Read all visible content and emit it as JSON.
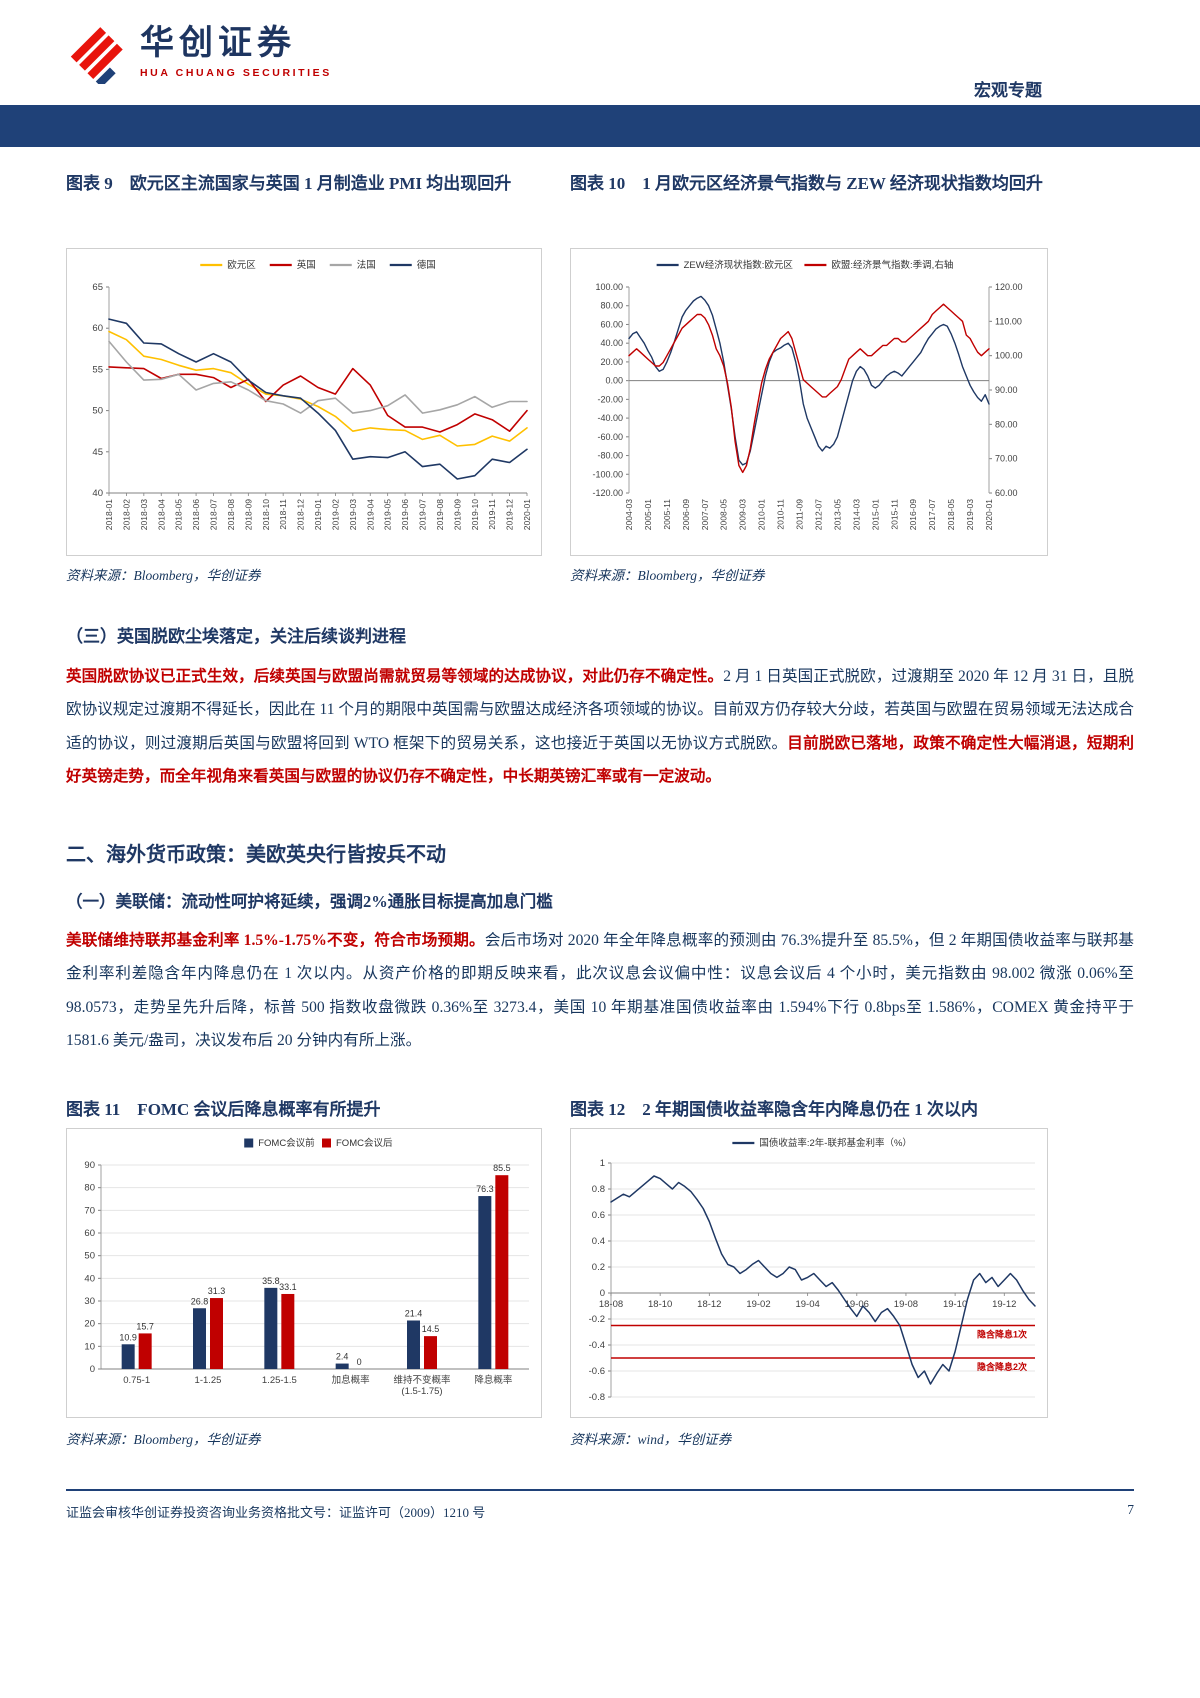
{
  "header": {
    "brand": "华创证券",
    "brand_sub": "HUA CHUANG SECURITIES",
    "tag": "宏观专题"
  },
  "figures": {
    "fig9": {
      "caption": "图表 9　欧元区主流国家与英国 1 月制造业 PMI 均出现回升",
      "source": "资料来源：Bloomberg，华创证券"
    },
    "fig10": {
      "caption": "图表 10　1 月欧元区经济景气指数与 ZEW 经济现状指数均回升",
      "source": "资料来源：Bloomberg，华创证券"
    },
    "fig11": {
      "caption": "图表 11　FOMC 会议后降息概率有所提升",
      "source": "资料来源：Bloomberg，华创证券"
    },
    "fig12": {
      "caption": "图表 12　2 年期国债收益率隐含年内降息仍在 1 次以内",
      "source": "资料来源：wind，华创证券"
    }
  },
  "sections": {
    "s3_heading": "（三）英国脱欧尘埃落定，关注后续谈判进程",
    "brexit_paragraph": [
      {
        "style": "em",
        "text": "英国脱欧协议已正式生效，后续英国与欧盟尚需就贸易等领域的达成协议，对此仍存不确定性。"
      },
      {
        "style": "normal",
        "text": "2 月 1 日英国正式脱欧，过渡期至 2020 年 12 月 31 日，且脱欧协议规定过渡期不得延长，因此在 11 个月的期限中英国需与欧盟达成经济各项领域的协议。目前双方仍存较大分歧，若英国与欧盟在贸易领域无法达成合适的协议，则过渡期后英国与欧盟将回到 WTO 框架下的贸易关系，这也接近于英国以无协议方式脱欧。"
      },
      {
        "style": "em",
        "text": "目前脱欧已落地，政策不确定性大幅消退，短期利好英镑走势，而全年视角来看英国与欧盟的协议仍存不确定性，中长期英镑汇率或有一定波动。"
      }
    ],
    "s2_heading": "二、海外货币政策：美欧英央行皆按兵不动",
    "s21_heading": "（一）美联储：流动性呵护将延续，强调2%通胀目标提高加息门槛",
    "fed_paragraph": [
      {
        "style": "em",
        "text": "美联储维持联邦基金利率 1.5%-1.75%不变，符合市场预期。"
      },
      {
        "style": "normal",
        "text": "会后市场对 2020 年全年降息概率的预测由 76.3%提升至 85.5%，但 2 年期国债收益率与联邦基金利率利差隐含年内降息仍在 1 次以内。从资产价格的即期反映来看，此次议息会议偏中性：议息会议后 4 个小时，美元指数由 98.002 微涨 0.06%至 98.0573，走势呈先升后降，标普 500 指数收盘微跌 0.36%至 3273.4，美国 10 年期基准国债收益率由 1.594%下行 0.8bps至 1.586%，COMEX 黄金持平于 1581.6 美元/盎司，决议发布后 20 分钟内有所上涨。"
      }
    ]
  },
  "footer": {
    "license": "证监会审核华创证券投资咨询业务资格批文号：证监许可（2009）1210 号",
    "page": "7"
  },
  "colors": {
    "navy": "#1F3864",
    "red": "#C00000",
    "bar": "#1F4178",
    "yellow": "#FFC000",
    "gray": "#A6A6A6"
  },
  "chart_data": [
    {
      "id": "fig9",
      "type": "line",
      "title": "欧元区主流国家与英国1月制造业PMI均出现回升",
      "ylim": [
        40,
        65
      ],
      "yticks": [
        40,
        45,
        50,
        55,
        60,
        65
      ],
      "ytick_labels": [
        "40",
        "45",
        "50",
        "55",
        "60",
        "65"
      ],
      "x_labels": [
        "2018-01",
        "2018-02",
        "2018-03",
        "2018-04",
        "2018-05",
        "2018-06",
        "2018-07",
        "2018-08",
        "2018-09",
        "2018-10",
        "2018-11",
        "2018-12",
        "2019-01",
        "2019-02",
        "2019-03",
        "2019-04",
        "2019-05",
        "2019-06",
        "2019-07",
        "2019-08",
        "2019-09",
        "2019-10",
        "2019-11",
        "2019-12",
        "2020-01"
      ],
      "series": [
        {
          "name": "欧元区",
          "color": "#FFC000",
          "values": [
            59.6,
            58.6,
            56.6,
            56.2,
            55.5,
            54.9,
            55.1,
            54.6,
            53.2,
            52.0,
            51.8,
            51.4,
            50.5,
            49.3,
            47.5,
            47.9,
            47.7,
            47.6,
            46.5,
            47.0,
            45.7,
            45.9,
            46.9,
            46.3,
            47.9
          ]
        },
        {
          "name": "英国",
          "color": "#C00000",
          "values": [
            55.3,
            55.2,
            55.1,
            53.9,
            54.4,
            54.4,
            54.0,
            52.8,
            53.8,
            51.1,
            53.1,
            54.2,
            52.8,
            52.0,
            55.1,
            53.1,
            49.4,
            48.0,
            48.0,
            47.4,
            48.3,
            49.6,
            48.9,
            47.5,
            50.0
          ]
        },
        {
          "name": "法国",
          "color": "#A6A6A6",
          "values": [
            58.4,
            55.9,
            53.7,
            53.8,
            54.4,
            52.5,
            53.3,
            53.5,
            52.5,
            51.2,
            50.8,
            49.7,
            51.2,
            51.5,
            49.7,
            50.0,
            50.6,
            51.9,
            49.7,
            50.1,
            50.7,
            51.7,
            50.4,
            51.1,
            51.1
          ]
        },
        {
          "name": "德国",
          "color": "#1F3864",
          "values": [
            61.1,
            60.6,
            58.2,
            58.1,
            56.9,
            55.9,
            56.9,
            55.9,
            53.7,
            52.2,
            51.8,
            51.5,
            49.7,
            47.6,
            44.1,
            44.4,
            44.3,
            45.0,
            43.2,
            43.5,
            41.7,
            42.1,
            44.1,
            43.7,
            45.3
          ]
        }
      ]
    },
    {
      "id": "fig10",
      "type": "line",
      "title": "1月欧元区经济景气指数与ZEW经济现状指数均回升",
      "ylim": [
        -120,
        100
      ],
      "yticks": [
        100,
        80,
        60,
        40,
        20,
        0,
        -20,
        -40,
        -60,
        -80,
        -100,
        -120
      ],
      "ytick_labels": [
        "100.00",
        "80.00",
        "60.00",
        "40.00",
        "20.00",
        "0.00",
        "-20.00",
        "-40.00",
        "-60.00",
        "-80.00",
        "-100.00",
        "-120.00"
      ],
      "y2lim": [
        60,
        120
      ],
      "y2ticks": [
        120,
        110,
        100,
        90,
        80,
        70,
        60
      ],
      "y2tick_labels": [
        "120.00",
        "110.00",
        "100.00",
        "90.00",
        "80.00",
        "70.00",
        "60.00"
      ],
      "x_axis_at": 0,
      "xtick_idx": [
        0,
        5,
        10,
        15,
        20,
        25,
        30,
        35,
        40,
        45,
        50,
        55,
        60,
        65,
        70,
        75,
        80,
        85,
        90,
        95
      ],
      "xtick_labels": [
        "2004-03",
        "2005-01",
        "2005-11",
        "2006-09",
        "2007-07",
        "2008-05",
        "2009-03",
        "2010-01",
        "2010-11",
        "2011-09",
        "2012-07",
        "2013-05",
        "2014-03",
        "2015-01",
        "2015-11",
        "2016-09",
        "2017-07",
        "2018-05",
        "2019-03",
        "2020-01"
      ],
      "series": [
        {
          "name": "ZEW经济现状指数:欧元区",
          "color": "#1F3864",
          "axis": "left",
          "values": [
            45,
            50,
            52,
            46,
            40,
            32,
            25,
            15,
            10,
            12,
            20,
            30,
            42,
            55,
            68,
            75,
            80,
            85,
            88,
            90,
            86,
            80,
            70,
            55,
            40,
            20,
            -5,
            -30,
            -60,
            -85,
            -90,
            -88,
            -75,
            -55,
            -35,
            -15,
            5,
            20,
            30,
            33,
            35,
            38,
            40,
            35,
            20,
            0,
            -25,
            -40,
            -50,
            -60,
            -70,
            -75,
            -70,
            -72,
            -68,
            -60,
            -45,
            -30,
            -15,
            0,
            10,
            15,
            12,
            5,
            -5,
            -8,
            -5,
            0,
            5,
            8,
            10,
            8,
            5,
            10,
            15,
            20,
            25,
            30,
            38,
            45,
            50,
            55,
            58,
            60,
            58,
            50,
            40,
            28,
            15,
            5,
            -5,
            -12,
            -18,
            -22,
            -15,
            -25
          ]
        },
        {
          "name": "欧盟:经济景气指数:季调,右轴",
          "color": "#C00000",
          "axis": "right",
          "values": [
            100,
            101,
            102,
            101,
            100,
            99,
            98,
            97,
            97,
            98,
            100,
            102,
            104,
            106,
            108,
            109,
            110,
            111,
            112,
            112,
            111,
            109,
            106,
            102,
            100,
            97,
            92,
            85,
            75,
            68,
            66,
            68,
            73,
            80,
            86,
            92,
            96,
            99,
            101,
            103,
            105,
            106,
            107,
            105,
            101,
            97,
            93,
            92,
            91,
            90,
            89,
            88,
            88,
            89,
            90,
            91,
            93,
            96,
            99,
            100,
            101,
            102,
            101,
            100,
            100,
            101,
            102,
            103,
            103,
            104,
            105,
            105,
            104,
            104,
            105,
            106,
            107,
            108,
            109,
            110,
            112,
            113,
            114,
            115,
            114,
            113,
            112,
            111,
            110,
            106,
            105,
            103,
            101,
            100,
            101,
            102
          ]
        }
      ]
    },
    {
      "id": "fig11",
      "type": "bar",
      "title": "FOMC会议后降息概率有所提升",
      "ylim": [
        0,
        90
      ],
      "yticks": [
        0,
        10,
        20,
        30,
        40,
        50,
        60,
        70,
        80,
        90
      ],
      "ytick_labels": [
        "0",
        "10",
        "20",
        "30",
        "40",
        "50",
        "60",
        "70",
        "80",
        "90"
      ],
      "categories": [
        [
          "0.75-1"
        ],
        [
          "1-1.25"
        ],
        [
          "1.25-1.5"
        ],
        [
          "加息概率"
        ],
        [
          "维持不变概率",
          "(1.5-1.75)"
        ],
        [
          "降息概率"
        ]
      ],
      "series": [
        {
          "name": "FOMC会议前",
          "color": "#1F3864",
          "values": [
            10.9,
            26.8,
            35.8,
            2.4,
            21.4,
            76.3
          ]
        },
        {
          "name": "FOMC会议后",
          "color": "#C00000",
          "values": [
            15.7,
            31.3,
            33.1,
            0,
            14.5,
            85.5
          ]
        }
      ]
    },
    {
      "id": "fig12",
      "type": "line",
      "title": "2年期国债收益率隐含年内降息仍在1次以内",
      "ylim": [
        -0.8,
        1
      ],
      "yticks": [
        1,
        0.8,
        0.6,
        0.4,
        0.2,
        0,
        -0.2,
        -0.4,
        -0.6,
        -0.8
      ],
      "ytick_labels": [
        "1",
        "0.8",
        "0.6",
        "0.4",
        "0.2",
        "0",
        "-0.2",
        "-0.4",
        "-0.6",
        "-0.8"
      ],
      "x_axis_at": 0,
      "xtick_idx": [
        0,
        8,
        16,
        24,
        32,
        40,
        48,
        56,
        64
      ],
      "xtick_labels": [
        "18-08",
        "18-10",
        "18-12",
        "19-02",
        "19-04",
        "19-06",
        "19-08",
        "19-10",
        "19-12"
      ],
      "ref_lines": [
        {
          "y": -0.25,
          "label": "隐含降息1次",
          "color": "#C00000"
        },
        {
          "y": -0.5,
          "label": "隐含降息2次",
          "color": "#C00000"
        }
      ],
      "series": [
        {
          "name": "国债收益率:2年-联邦基金利率（%）",
          "color": "#1F3864",
          "axis": "left",
          "values": [
            0.7,
            0.73,
            0.76,
            0.74,
            0.78,
            0.82,
            0.86,
            0.9,
            0.88,
            0.84,
            0.8,
            0.85,
            0.82,
            0.78,
            0.72,
            0.65,
            0.55,
            0.42,
            0.3,
            0.22,
            0.2,
            0.15,
            0.18,
            0.22,
            0.25,
            0.2,
            0.15,
            0.12,
            0.15,
            0.2,
            0.18,
            0.1,
            0.12,
            0.15,
            0.1,
            0.05,
            0.08,
            0.02,
            -0.05,
            -0.12,
            -0.18,
            -0.1,
            -0.15,
            -0.22,
            -0.15,
            -0.12,
            -0.18,
            -0.25,
            -0.4,
            -0.55,
            -0.65,
            -0.6,
            -0.7,
            -0.62,
            -0.55,
            -0.6,
            -0.45,
            -0.25,
            -0.05,
            0.1,
            0.15,
            0.08,
            0.12,
            0.05,
            0.1,
            0.15,
            0.1,
            0.02,
            -0.05,
            -0.1
          ]
        }
      ]
    }
  ]
}
